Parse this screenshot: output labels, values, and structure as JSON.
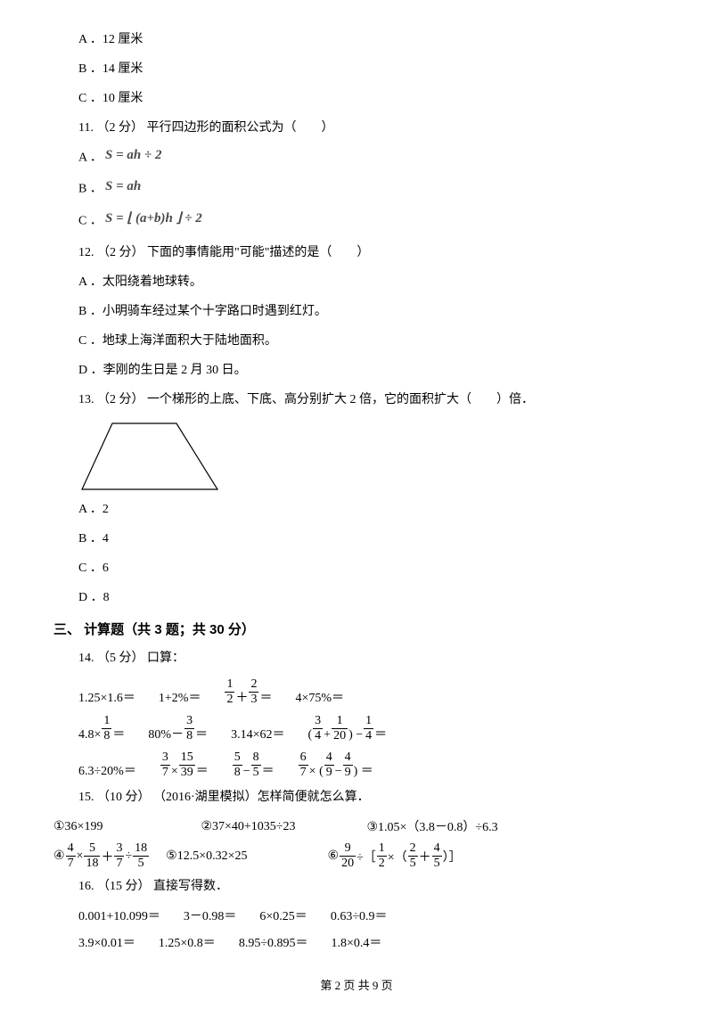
{
  "q10": {
    "optA": "A ．12 厘米",
    "optB": "B ．14 厘米",
    "optC": "C ．10 厘米"
  },
  "q11": {
    "stem": "11.  （2 分）  平行四边形的面积公式为（　　）",
    "optA_prefix": "A ．",
    "optB_prefix": "B ．",
    "optC_prefix": "C ．",
    "formulaA_text": "S = ah ÷ 2",
    "formulaB_text": "S = ah",
    "formulaC_text": "S = ⌊ (a+b)h ⌋ ÷ 2"
  },
  "q12": {
    "stem": "12.  （2 分）  下面的事情能用\"可能\"描述的是（　　）",
    "optA": "A ．太阳绕着地球转。",
    "optB": "B ．小明骑车经过某个十字路口时遇到红灯。",
    "optC": "C ．地球上海洋面积大于陆地面积。",
    "optD": "D ．李刚的生日是 2 月 30 日。"
  },
  "q13": {
    "stem": "13.  （2 分）  一个梯形的上底、下底、高分别扩大 2 倍，它的面积扩大（　　）倍．",
    "optA": "A ．2",
    "optB": "B ．4",
    "optC": "C ．6",
    "optD": "D ．8",
    "trapezoid": {
      "width": 160,
      "height": 82,
      "topLeftX": 38,
      "topRightX": 110,
      "stroke": "#000000",
      "strokeWidth": 1.2
    }
  },
  "section3": "三、  计算题（共 3 题；共 30 分）",
  "q14": {
    "stem": "14.  （5 分）  口算：",
    "rows": [
      [
        {
          "plain": "1.25×1.6＝"
        },
        {
          "plain": "1+2%＝"
        },
        {
          "frac_expr": [
            {
              "n": "1",
              "d": "2"
            },
            " ＋ ",
            {
              "n": "2",
              "d": "3"
            },
            " ＝"
          ]
        },
        {
          "plain": "4×75%＝"
        }
      ],
      [
        {
          "frac_expr": [
            "4.8× ",
            {
              "n": "1",
              "d": "8"
            },
            " ＝"
          ]
        },
        {
          "frac_expr": [
            "80%－ ",
            {
              "n": "3",
              "d": "8"
            },
            " ＝"
          ]
        },
        {
          "plain": "3.14×62＝"
        },
        {
          "frac_expr": [
            "( ",
            {
              "n": "3",
              "d": "4"
            },
            "+",
            {
              "n": "1",
              "d": "20"
            },
            " ) − ",
            {
              "n": "1",
              "d": "4"
            },
            " ＝"
          ]
        }
      ],
      [
        {
          "plain": "6.3÷20%＝"
        },
        {
          "frac_expr": [
            {
              "n": "3",
              "d": "7"
            },
            " × ",
            {
              "n": "15",
              "d": "39"
            },
            " ＝"
          ]
        },
        {
          "frac_expr": [
            {
              "n": "5",
              "d": "8"
            },
            " − ",
            {
              "n": "8",
              "d": "5"
            },
            " ＝"
          ]
        },
        {
          "frac_expr": [
            {
              "n": "6",
              "d": "7"
            },
            " × ( ",
            {
              "n": "4",
              "d": "9"
            },
            " − ",
            {
              "n": "4",
              "d": "9"
            },
            " ) ＝"
          ]
        }
      ]
    ]
  },
  "q15": {
    "stem": "15.  （10 分）  （2016·湖里模拟）怎样简便就怎么算．",
    "row1": [
      {
        "plain": "①36×199"
      },
      {
        "plain": "②37×40+1035÷23"
      },
      {
        "plain": "③1.05×（3.8－0.8）÷6.3"
      }
    ],
    "row2": [
      {
        "frac_expr": [
          "④ ",
          {
            "n": "4",
            "d": "7"
          },
          " × ",
          {
            "n": "5",
            "d": "18"
          },
          " ＋ ",
          {
            "n": "3",
            "d": "7"
          },
          " ÷ ",
          {
            "n": "18",
            "d": "5"
          }
        ]
      },
      {
        "plain": "⑤12.5×0.32×25"
      },
      {
        "frac_expr": [
          "⑥ ",
          {
            "n": "9",
            "d": "20"
          },
          " ÷［ ",
          {
            "n": "1",
            "d": "2"
          },
          " ×（ ",
          {
            "n": "2",
            "d": "5"
          },
          " ＋ ",
          {
            "n": "4",
            "d": "5"
          },
          " ）］"
        ]
      }
    ]
  },
  "q16": {
    "stem": "16.  （15 分）  直接写得数．",
    "row1": [
      "0.001+10.099＝",
      "3－0.98＝",
      "6×0.25＝",
      "0.63÷0.9＝"
    ],
    "row2": [
      "3.9×0.01＝",
      "1.25×0.8＝",
      "8.95÷0.895＝",
      "1.8×0.4＝"
    ]
  },
  "footer": "第 2 页 共 9 页",
  "colors": {
    "text": "#000000",
    "bg": "#ffffff",
    "formula_gray": "#4a4a4a"
  },
  "fontsizes": {
    "body": 14,
    "section": 15,
    "footer": 13
  }
}
